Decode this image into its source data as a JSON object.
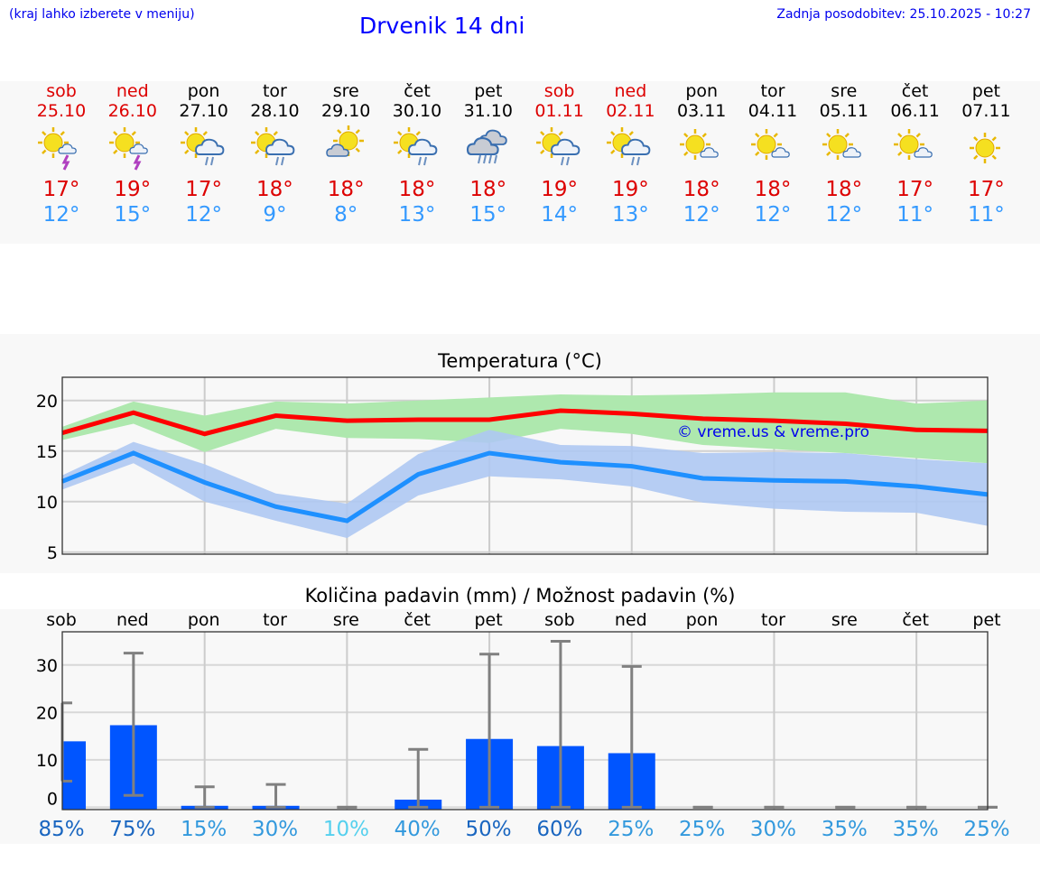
{
  "header": {
    "note": "(kraj lahko izberete v meniju)",
    "title": "Drvenik 14 dni",
    "updated": "Zadnja posodobitev: 25.10.2025 - 10:27"
  },
  "days": [
    {
      "day": "sob",
      "date": "25.10",
      "weekend": true,
      "icon": "sun-cloud-thunder-icon",
      "hi": "17°",
      "lo": "12°"
    },
    {
      "day": "ned",
      "date": "26.10",
      "weekend": true,
      "icon": "sun-cloud-thunder-icon",
      "hi": "19°",
      "lo": "15°"
    },
    {
      "day": "pon",
      "date": "27.10",
      "weekend": false,
      "icon": "sun-cloud-rain-icon",
      "hi": "17°",
      "lo": "12°"
    },
    {
      "day": "tor",
      "date": "28.10",
      "weekend": false,
      "icon": "sun-cloud-rain-icon",
      "hi": "18°",
      "lo": "9°"
    },
    {
      "day": "sre",
      "date": "29.10",
      "weekend": false,
      "icon": "cloud-sun-icon",
      "hi": "18°",
      "lo": "8°"
    },
    {
      "day": "čet",
      "date": "30.10",
      "weekend": false,
      "icon": "sun-cloud-rain-icon",
      "hi": "18°",
      "lo": "13°"
    },
    {
      "day": "pet",
      "date": "31.10",
      "weekend": false,
      "icon": "heavy-rain-icon",
      "hi": "18°",
      "lo": "15°"
    },
    {
      "day": "sob",
      "date": "01.11",
      "weekend": true,
      "icon": "sun-cloud-rain-icon",
      "hi": "19°",
      "lo": "14°"
    },
    {
      "day": "ned",
      "date": "02.11",
      "weekend": true,
      "icon": "sun-cloud-rain-icon",
      "hi": "19°",
      "lo": "13°"
    },
    {
      "day": "pon",
      "date": "03.11",
      "weekend": false,
      "icon": "sun-small-cloud-icon",
      "hi": "18°",
      "lo": "12°"
    },
    {
      "day": "tor",
      "date": "04.11",
      "weekend": false,
      "icon": "sun-small-cloud-icon",
      "hi": "18°",
      "lo": "12°"
    },
    {
      "day": "sre",
      "date": "05.11",
      "weekend": false,
      "icon": "sun-small-cloud-icon",
      "hi": "18°",
      "lo": "12°"
    },
    {
      "day": "čet",
      "date": "06.11",
      "weekend": false,
      "icon": "sun-small-cloud-icon",
      "hi": "17°",
      "lo": "11°"
    },
    {
      "day": "pet",
      "date": "07.11",
      "weekend": false,
      "icon": "sun-icon",
      "hi": "17°",
      "lo": "11°"
    }
  ],
  "colors": {
    "hi": "#ff0000",
    "lo": "#1e90ff",
    "hiBand": "#aee8ae",
    "loBand": "#aec8f2",
    "bar": "#0055ff",
    "err": "#808080"
  },
  "chart_data": [
    {
      "type": "line",
      "title": "Temperatura (°C)",
      "ylim": [
        4.8,
        22.3
      ],
      "yticks": [
        5,
        10,
        15,
        20
      ],
      "watermark": "© vreme.us & vreme.pro",
      "series": [
        {
          "name": "max",
          "values": [
            16.8,
            18.8,
            16.7,
            18.5,
            18.0,
            18.1,
            18.1,
            19.0,
            18.7,
            18.2,
            18.0,
            17.7,
            17.1,
            17.0
          ],
          "band_high": [
            17.4,
            19.9,
            18.5,
            19.9,
            19.7,
            20.0,
            20.3,
            20.6,
            20.5,
            20.6,
            20.8,
            20.8,
            19.7,
            20.0
          ],
          "band_low": [
            16.1,
            17.7,
            14.9,
            17.2,
            16.3,
            16.2,
            15.8,
            17.2,
            16.7,
            15.6,
            15.2,
            14.8,
            14.3,
            13.8
          ]
        },
        {
          "name": "min",
          "values": [
            12.0,
            14.8,
            11.9,
            9.5,
            8.1,
            12.7,
            14.8,
            13.9,
            13.5,
            12.3,
            12.1,
            12.0,
            11.5,
            10.7
          ],
          "band_high": [
            12.6,
            15.9,
            13.7,
            10.8,
            9.8,
            14.7,
            17.1,
            15.6,
            15.5,
            14.8,
            14.9,
            14.8,
            14.2,
            13.8
          ],
          "band_low": [
            11.2,
            13.8,
            10.0,
            8.1,
            6.4,
            10.6,
            12.5,
            12.2,
            11.5,
            9.9,
            9.3,
            9.0,
            8.9,
            7.6
          ]
        }
      ]
    },
    {
      "type": "bar",
      "title": "Količina padavin (mm) / Možnost padavin (%)",
      "ylim": [
        -0.5,
        37
      ],
      "yticks": [
        0,
        10,
        20,
        30
      ],
      "categories": [
        "sob",
        "ned",
        "pon",
        "tor",
        "sre",
        "čet",
        "pet",
        "sob",
        "ned",
        "pon",
        "tor",
        "sre",
        "čet",
        "pet"
      ],
      "values": [
        13.9,
        17.3,
        0.3,
        0.3,
        0,
        1.6,
        14.4,
        12.9,
        11.4,
        0,
        0,
        0,
        0,
        0
      ],
      "err_low": [
        5.5,
        2.5,
        0,
        0,
        0,
        0,
        0,
        0,
        0,
        0,
        0,
        0,
        0,
        0
      ],
      "err_high": [
        22,
        32.5,
        4.3,
        4.8,
        0,
        12.2,
        32.3,
        35,
        29.7,
        0,
        0,
        0,
        0,
        0
      ],
      "probability": [
        "85%",
        "75%",
        "15%",
        "30%",
        "10%",
        "40%",
        "50%",
        "60%",
        "25%",
        "25%",
        "30%",
        "35%",
        "35%",
        "25%"
      ]
    }
  ]
}
